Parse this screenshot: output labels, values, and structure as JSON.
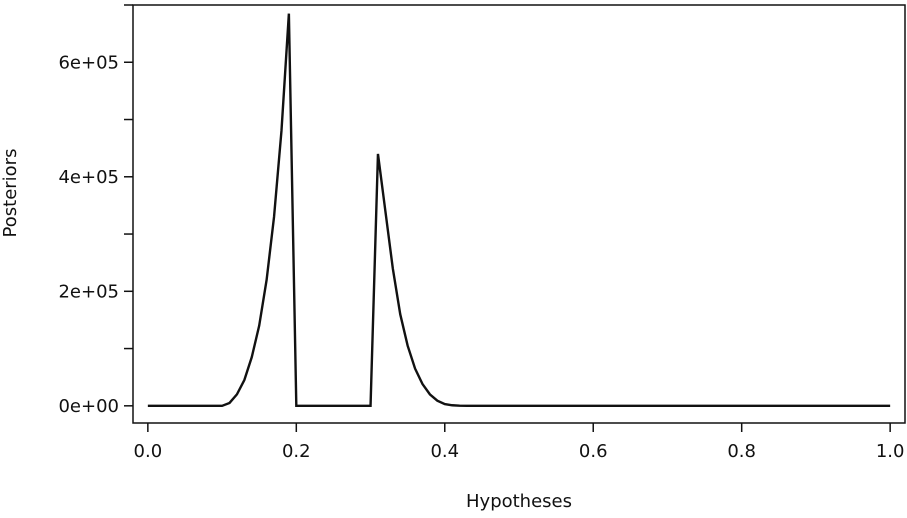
{
  "chart_data": {
    "type": "line",
    "title": "",
    "xlabel": "Hypotheses",
    "ylabel": "Posteriors",
    "xlim": [
      -0.02,
      1.02
    ],
    "ylim": [
      -30000,
      700000
    ],
    "x_ticks": [
      0.0,
      0.2,
      0.4,
      0.6,
      0.8,
      1.0
    ],
    "x_tick_labels": [
      "0.0",
      "0.2",
      "0.4",
      "0.6",
      "0.8",
      "1.0"
    ],
    "y_ticks": [
      0,
      200000,
      400000,
      600000
    ],
    "y_tick_labels": [
      "0e+00",
      "2e+05",
      "4e+05",
      "6e+05"
    ],
    "y_minor_ticks": [
      100000,
      300000,
      500000,
      700000
    ],
    "grid": false,
    "legend": "none",
    "line_color": "#111111",
    "series": [
      {
        "x": [
          0.0,
          0.05,
          0.1,
          0.11,
          0.12,
          0.13,
          0.14,
          0.15,
          0.16,
          0.17,
          0.18,
          0.19,
          0.2,
          0.25,
          0.3,
          0.31,
          0.32,
          0.33,
          0.34,
          0.35,
          0.36,
          0.37,
          0.38,
          0.39,
          0.4,
          0.41,
          0.42,
          0.43,
          0.5,
          0.6,
          0.7,
          0.8,
          0.9,
          1.0
        ],
        "y": [
          0,
          0,
          0,
          5000,
          20000,
          45000,
          85000,
          140000,
          220000,
          330000,
          480000,
          685000,
          0,
          0,
          0,
          440000,
          340000,
          240000,
          160000,
          105000,
          65000,
          38000,
          20000,
          9000,
          3000,
          1000,
          300,
          0,
          0,
          0,
          0,
          0,
          0,
          0
        ]
      }
    ]
  }
}
